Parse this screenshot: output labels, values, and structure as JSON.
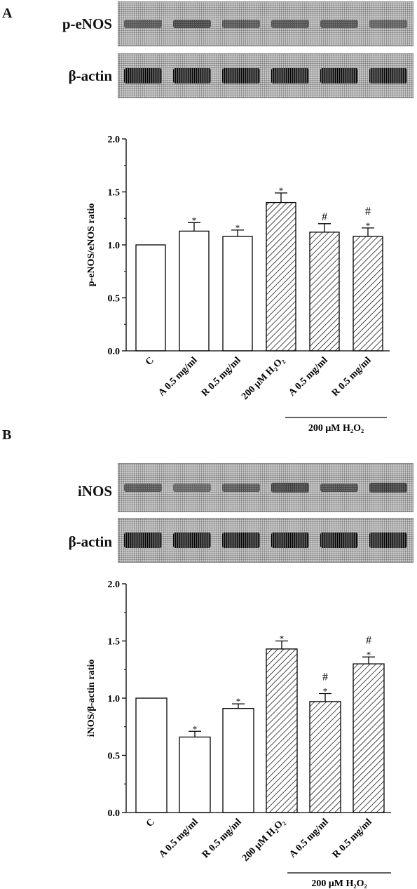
{
  "panel_a": {
    "letter": "A",
    "blots": [
      {
        "label": "p-eNOS",
        "style": "light",
        "bands": [
          0.55,
          0.75,
          0.55,
          0.6,
          0.6,
          0.45
        ]
      },
      {
        "label": "β-actin",
        "style": "dark",
        "bands": [
          1.0,
          0.95,
          0.95,
          0.95,
          1.0,
          0.9
        ]
      }
    ]
  },
  "panel_b": {
    "letter": "B",
    "blots": [
      {
        "label": "iNOS",
        "style": "light",
        "bands": [
          0.6,
          0.4,
          0.55,
          0.85,
          0.7,
          0.9
        ]
      },
      {
        "label": "β-actin",
        "style": "dark",
        "bands": [
          0.95,
          0.95,
          0.95,
          1.0,
          1.0,
          0.95
        ]
      }
    ]
  },
  "chart_data": [
    {
      "type": "bar",
      "ylabel": "p-eNOS/eNOS ratio",
      "ylim": [
        0,
        2.0
      ],
      "yticks": [
        "0.0",
        "0.5",
        "1.0",
        "1.5",
        "2.0"
      ],
      "categories": [
        "C",
        "A 0.5 mg/ml",
        "R 0.5 mg/ml",
        "200 μM H₂O₂",
        "A 0.5 mg/ml",
        "R 0.5 mg/ml"
      ],
      "values": [
        1.0,
        1.13,
        1.08,
        1.4,
        1.12,
        1.08
      ],
      "errors": [
        0.0,
        0.08,
        0.06,
        0.09,
        0.08,
        0.08
      ],
      "hatched": [
        false,
        false,
        false,
        true,
        true,
        true
      ],
      "annotations": [
        "",
        "*",
        "*",
        "*",
        "#",
        "#\n*"
      ],
      "group_label": "200 μM H₂O₂"
    },
    {
      "type": "bar",
      "ylabel": "iNOS/β-actin ratio",
      "ylim": [
        0,
        2.0
      ],
      "yticks": [
        "0.0",
        "0.5",
        "1.0",
        "1.5",
        "2.0"
      ],
      "categories": [
        "C",
        "A 0.5 mg/ml",
        "R 0.5 mg/ml",
        "200 μM H₂O₂",
        "A 0.5 mg/ml",
        "R 0.5 mg/ml"
      ],
      "values": [
        1.0,
        0.66,
        0.91,
        1.43,
        0.97,
        1.3
      ],
      "errors": [
        0.0,
        0.05,
        0.04,
        0.07,
        0.07,
        0.06
      ],
      "hatched": [
        false,
        false,
        false,
        true,
        true,
        true
      ],
      "annotations": [
        "",
        "*",
        "*",
        "*",
        "#\n*",
        "#\n*"
      ],
      "group_label": "200 μM H₂O₂"
    }
  ]
}
